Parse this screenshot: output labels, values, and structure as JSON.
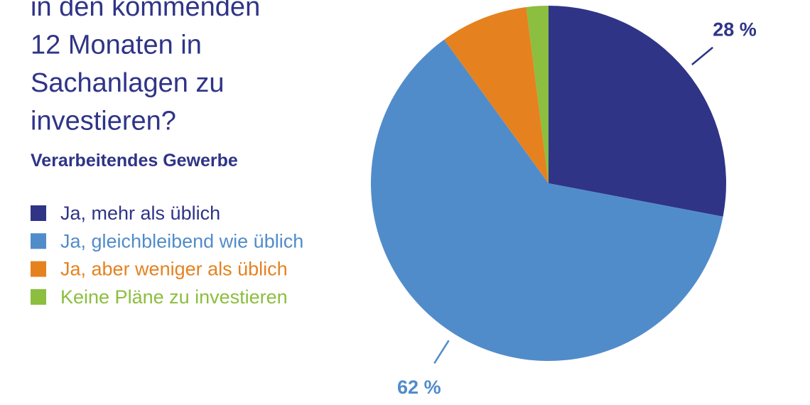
{
  "chart_data": {
    "type": "pie",
    "title": [
      "in den kommenden",
      "12 Monaten in",
      "Sachanlagen zu",
      "investieren?"
    ],
    "subtitle": "Verarbeitendes Gewerbe",
    "categories": [
      "Ja, mehr als üblich",
      "Ja, gleichbleibend wie üblich",
      "Ja, aber weniger als üblich",
      "Keine Pläne zu investieren"
    ],
    "values": [
      28,
      62,
      8,
      2
    ],
    "value_labels": [
      "28 %",
      "62 %",
      null,
      null
    ],
    "colors": [
      "#2f3487",
      "#518cca",
      "#e5821f",
      "#8cbe3f"
    ]
  }
}
